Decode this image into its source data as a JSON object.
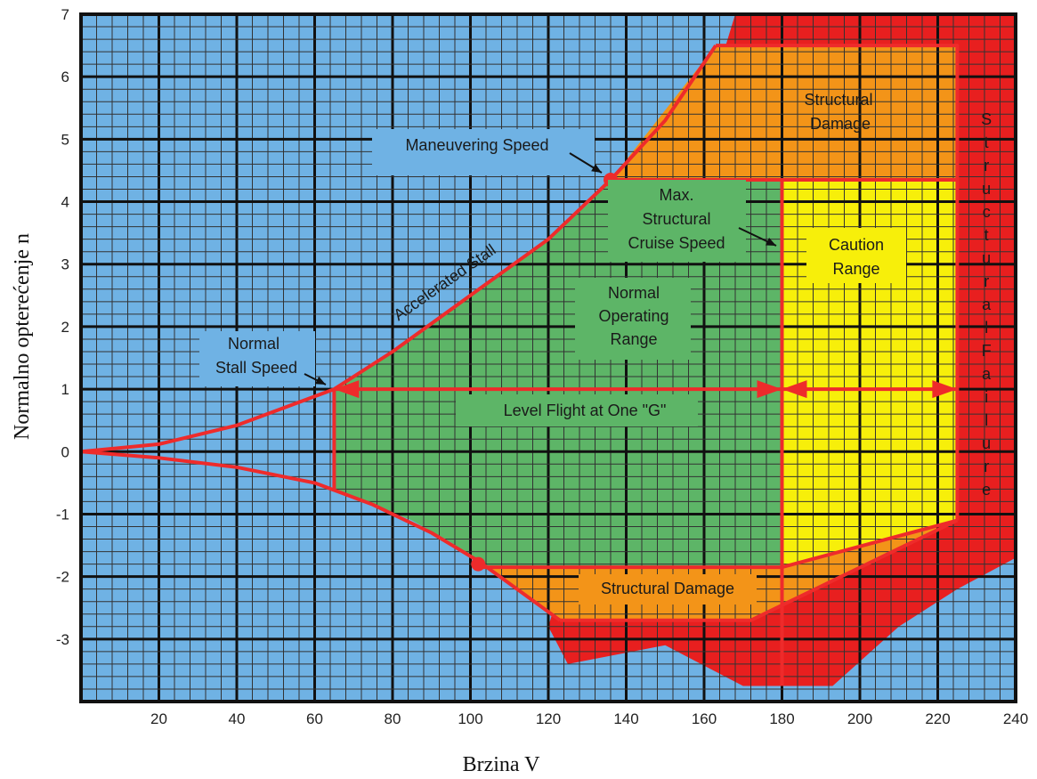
{
  "chart_data": {
    "type": "area",
    "xlabel": "Brzina V",
    "ylabel": "Normalno opterećenje n",
    "xlim": [
      0,
      240
    ],
    "ylim": [
      -4,
      7
    ],
    "xticks": [
      20,
      40,
      60,
      80,
      100,
      120,
      140,
      160,
      180,
      200,
      220,
      240
    ],
    "yticks": [
      7,
      6,
      5,
      4,
      3,
      2,
      1,
      0,
      -1,
      -2,
      -3
    ],
    "grid": true,
    "colors": {
      "background": "#6fb2e4",
      "normal": "#5db567",
      "caution": "#f7ef0a",
      "damage": "#f39418",
      "failure": "#e81f1f",
      "line": "#ee2b2b"
    },
    "regions": [
      {
        "name": "Structural Failure",
        "color": "failure",
        "points": [
          [
            168,
            7
          ],
          [
            240,
            7
          ],
          [
            240,
            -1.7
          ],
          [
            225,
            -2.2
          ],
          [
            210,
            -2.8
          ],
          [
            193,
            -3.75
          ],
          [
            170,
            -3.75
          ],
          [
            150,
            -3.1
          ],
          [
            125,
            -3.4
          ],
          [
            120,
            -2.8
          ]
        ]
      },
      {
        "name": "Structural Damage (upper)",
        "color": "damage",
        "points": [
          [
            163,
            6.5
          ],
          [
            225,
            6.5
          ],
          [
            225,
            4.35
          ],
          [
            136,
            4.35
          ]
        ]
      },
      {
        "name": "Structural Damage (lower)",
        "color": "damage",
        "points": [
          [
            104,
            -1.85
          ],
          [
            180,
            -1.85
          ],
          [
            225,
            -1.1
          ],
          [
            172,
            -2.7
          ],
          [
            123,
            -2.7
          ]
        ]
      },
      {
        "name": "Caution Range",
        "color": "caution",
        "points": [
          [
            180,
            4.35
          ],
          [
            225,
            4.35
          ],
          [
            225,
            -1.1
          ],
          [
            180,
            -1.85
          ]
        ]
      },
      {
        "name": "Normal Operating Range",
        "color": "normal",
        "points": [
          [
            65,
            1
          ],
          [
            70,
            1.2
          ],
          [
            80,
            1.6
          ],
          [
            90,
            2.05
          ],
          [
            100,
            2.5
          ],
          [
            110,
            2.95
          ],
          [
            120,
            3.4
          ],
          [
            130,
            3.95
          ],
          [
            136,
            4.35
          ],
          [
            180,
            4.35
          ],
          [
            180,
            -1.85
          ],
          [
            104,
            -1.85
          ],
          [
            95,
            -1.45
          ],
          [
            85,
            -1.1
          ],
          [
            75,
            -0.85
          ],
          [
            65,
            -0.6
          ]
        ]
      }
    ],
    "lines": {
      "upper_boundary": [
        [
          0,
          0
        ],
        [
          20,
          0.12
        ],
        [
          40,
          0.42
        ],
        [
          65,
          1
        ],
        [
          80,
          1.6
        ],
        [
          100,
          2.5
        ],
        [
          120,
          3.4
        ],
        [
          136,
          4.35
        ],
        [
          150,
          5.3
        ],
        [
          163,
          6.5
        ]
      ],
      "lower_boundary": [
        [
          0,
          0
        ],
        [
          20,
          -0.1
        ],
        [
          40,
          -0.25
        ],
        [
          60,
          -0.5
        ],
        [
          75,
          -0.85
        ],
        [
          90,
          -1.3
        ],
        [
          102,
          -1.75
        ],
        [
          112,
          -2.2
        ],
        [
          123,
          -2.7
        ]
      ],
      "stall_vertical": [
        [
          65,
          1
        ],
        [
          65,
          -0.6
        ]
      ],
      "cruise_vertical": [
        [
          180,
          4.35
        ],
        [
          180,
          -3.75
        ]
      ],
      "upper_limit": [
        [
          163,
          6.5
        ],
        [
          225,
          6.5
        ],
        [
          225,
          -1.1
        ]
      ],
      "caution_top": [
        [
          136,
          4.35
        ],
        [
          225,
          4.35
        ]
      ],
      "negative_limit": [
        [
          102,
          -1.85
        ],
        [
          180,
          -1.85
        ],
        [
          225,
          -1.1
        ]
      ],
      "negative_damage": [
        [
          123,
          -2.7
        ],
        [
          172,
          -2.7
        ],
        [
          225,
          -1.1
        ]
      ],
      "level_flight": [
        [
          65,
          1
        ],
        [
          225,
          1
        ]
      ]
    },
    "points": [
      {
        "name": "maneuvering",
        "x": 136,
        "y": 4.35
      },
      {
        "name": "negative_stall",
        "x": 102,
        "y": -1.8
      }
    ],
    "annotations": {
      "maneuvering_speed": "Maneuvering Speed",
      "structural_damage_top_1": "Structural",
      "structural_damage_top_2": "Damage",
      "max_cruise_1": "Max.",
      "max_cruise_2": "Structural",
      "max_cruise_3": "Cruise Speed",
      "caution_1": "Caution",
      "caution_2": "Range",
      "accelerated_stall": "Accelerated Stall",
      "normal_op_1": "Normal",
      "normal_op_2": "Operating",
      "normal_op_3": "Range",
      "normal_stall_1": "Normal",
      "normal_stall_2": "Stall Speed",
      "level_flight": "Level Flight at One \"G\"",
      "structural_damage_bottom": "Structural Damage",
      "structural_failure": "Structural Failure"
    }
  }
}
